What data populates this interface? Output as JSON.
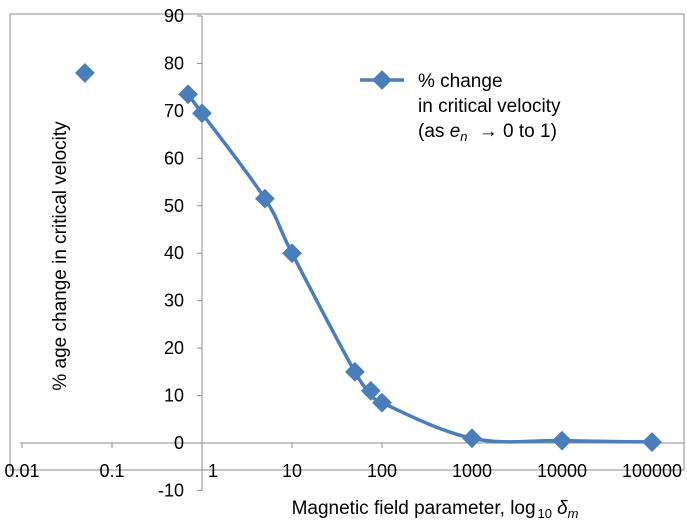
{
  "chart_data": {
    "type": "scatter",
    "xscale": "log",
    "xlabel": "Magnetic field parameter, log",
    "xlabel_sub": "10",
    "xlabel_symbol": "δ",
    "xlabel_symbol_sub": "m",
    "ylabel": "% age change in critical velocity",
    "xlim": [
      0.01,
      100000
    ],
    "ylim": [
      -10,
      90
    ],
    "x_ticks": [
      {
        "value": 0.01,
        "label": "0.01"
      },
      {
        "value": 0.1,
        "label": "0.1"
      },
      {
        "value": 1,
        "label": "1"
      },
      {
        "value": 10,
        "label": "10"
      },
      {
        "value": 100,
        "label": "100"
      },
      {
        "value": 1000,
        "label": "1000"
      },
      {
        "value": 10000,
        "label": "10000"
      },
      {
        "value": 100000,
        "label": "100000"
      }
    ],
    "y_ticks": [
      {
        "value": -10,
        "label": "-10"
      },
      {
        "value": 0,
        "label": "0"
      },
      {
        "value": 10,
        "label": "10"
      },
      {
        "value": 20,
        "label": "20"
      },
      {
        "value": 30,
        "label": "30"
      },
      {
        "value": 40,
        "label": "40"
      },
      {
        "value": 50,
        "label": "50"
      },
      {
        "value": 60,
        "label": "60"
      },
      {
        "value": 70,
        "label": "70"
      },
      {
        "value": 80,
        "label": "80"
      },
      {
        "value": 90,
        "label": "90"
      }
    ],
    "y_axis_at_x": 1,
    "grid": false,
    "legend_position": "top-right",
    "series": [
      {
        "name_line1": "% change",
        "name_line2": "in critical velocity",
        "name_line3_prefix": "(as ",
        "name_line3_var": "e",
        "name_line3_sub": "n",
        "name_line3_suffix": " → 0 to 1)",
        "color": "#4a7ebb",
        "connected": true,
        "points": [
          {
            "x": 0.7,
            "y": 73.5
          },
          {
            "x": 1,
            "y": 69.5
          },
          {
            "x": 5,
            "y": 51.5
          },
          {
            "x": 10,
            "y": 40
          },
          {
            "x": 50,
            "y": 15
          },
          {
            "x": 75,
            "y": 11
          },
          {
            "x": 100,
            "y": 8.5
          },
          {
            "x": 1000,
            "y": 1
          },
          {
            "x": 10000,
            "y": 0.5
          },
          {
            "x": 100000,
            "y": 0.2
          }
        ]
      },
      {
        "color": "#4a7ebb",
        "connected": false,
        "points": [
          {
            "x": 0.05,
            "y": 78
          }
        ]
      }
    ]
  }
}
